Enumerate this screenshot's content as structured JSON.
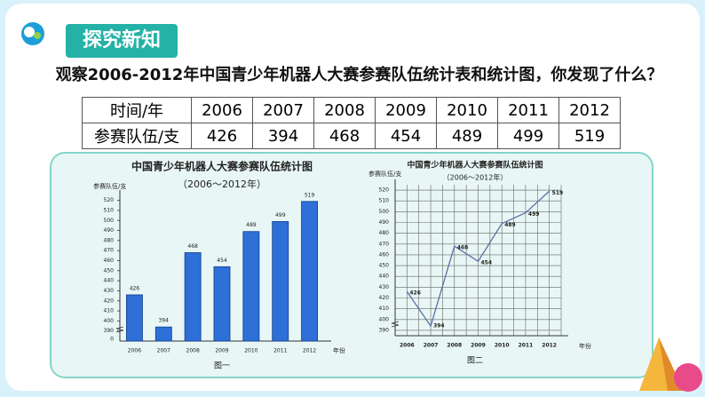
{
  "header": {
    "title": "探究新知"
  },
  "question": "观察2006-2012年中国青少年机器人大赛参赛队伍统计表和统计图，你发现了什么？",
  "table": {
    "rows": [
      [
        "时间/年",
        "2006",
        "2007",
        "2008",
        "2009",
        "2010",
        "2011",
        "2012"
      ],
      [
        "参赛队伍/支",
        "426",
        "394",
        "468",
        "454",
        "489",
        "499",
        "519"
      ]
    ]
  },
  "chart_data": [
    {
      "type": "bar",
      "title": "中国青少年机器人大赛参赛队伍统计图",
      "subtitle": "（2006～2012年）",
      "y_label": "参赛队伍/支",
      "x_label": "年份",
      "caption": "图一",
      "categories": [
        "2006",
        "2007",
        "2008",
        "2009",
        "2010",
        "2011",
        "2012"
      ],
      "values": [
        426,
        394,
        468,
        454,
        489,
        499,
        519
      ],
      "color": "#2e6fd8",
      "ylim": [
        380,
        525
      ],
      "yticks": [
        390,
        400,
        410,
        420,
        430,
        440,
        450,
        460,
        470,
        480,
        490,
        500,
        510,
        520
      ],
      "y_base_label": "0",
      "axis_break": true,
      "grid": false
    },
    {
      "type": "line",
      "title": "中国青少年机器人大赛参赛队伍统计图",
      "subtitle": "（2006～2012年）",
      "y_label": "参赛队伍/支",
      "x_label": "年份",
      "caption": "图二",
      "categories": [
        "2006",
        "2007",
        "2008",
        "2009",
        "2010",
        "2011",
        "2012"
      ],
      "values": [
        426,
        394,
        468,
        454,
        489,
        499,
        519
      ],
      "color": "#5b6fa8",
      "ylim": [
        385,
        525
      ],
      "yticks": [
        390,
        400,
        410,
        420,
        430,
        440,
        450,
        460,
        470,
        480,
        490,
        500,
        510,
        520
      ],
      "axis_break": true,
      "grid": true
    }
  ]
}
